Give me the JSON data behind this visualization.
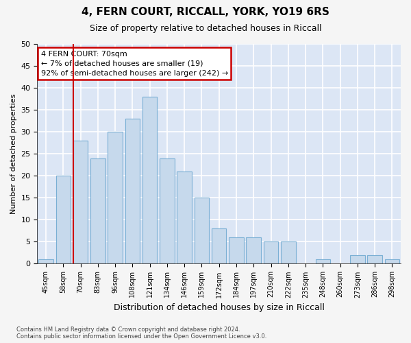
{
  "title_line1": "4, FERN COURT, RICCALL, YORK, YO19 6RS",
  "title_line2": "Size of property relative to detached houses in Riccall",
  "xlabel": "Distribution of detached houses by size in Riccall",
  "ylabel": "Number of detached properties",
  "categories": [
    "45sqm",
    "58sqm",
    "70sqm",
    "83sqm",
    "96sqm",
    "108sqm",
    "121sqm",
    "134sqm",
    "146sqm",
    "159sqm",
    "172sqm",
    "184sqm",
    "197sqm",
    "210sqm",
    "222sqm",
    "235sqm",
    "248sqm",
    "260sqm",
    "273sqm",
    "286sqm",
    "298sqm"
  ],
  "values": [
    1,
    20,
    28,
    24,
    30,
    33,
    38,
    24,
    21,
    15,
    8,
    6,
    6,
    5,
    5,
    0,
    1,
    0,
    2,
    2,
    1
  ],
  "bar_color": "#c6d9ec",
  "bar_edge_color": "#7aafd4",
  "property_line_color": "#cc0000",
  "property_bin_index": 2,
  "annotation_title": "4 FERN COURT: 70sqm",
  "annotation_line2": "← 7% of detached houses are smaller (19)",
  "annotation_line3": "92% of semi-detached houses are larger (242) →",
  "annotation_box_facecolor": "#ffffff",
  "annotation_box_edgecolor": "#cc0000",
  "ylim": [
    0,
    50
  ],
  "yticks": [
    0,
    5,
    10,
    15,
    20,
    25,
    30,
    35,
    40,
    45,
    50
  ],
  "background_color": "#dce6f5",
  "plot_bg_color": "#dce6f5",
  "fig_bg_color": "#f5f5f5",
  "grid_color": "#ffffff",
  "footer_line1": "Contains HM Land Registry data © Crown copyright and database right 2024.",
  "footer_line2": "Contains public sector information licensed under the Open Government Licence v3.0."
}
